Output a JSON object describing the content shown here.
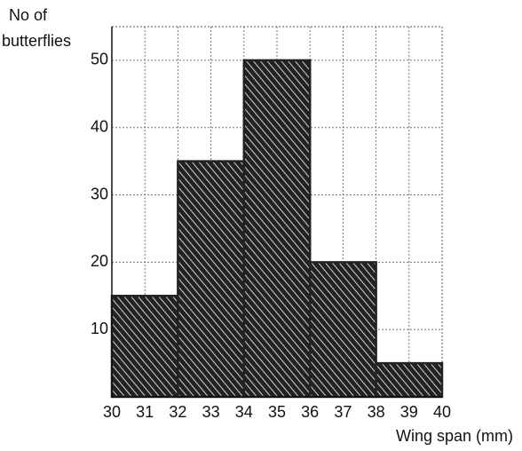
{
  "chart_data": {
    "type": "histogram",
    "ylabel": [
      "No of",
      "butterflies"
    ],
    "xlabel": "Wing span (mm)",
    "bins": [
      30,
      32,
      34,
      36,
      38,
      40
    ],
    "values": [
      15,
      35,
      50,
      20,
      5
    ],
    "color": "#222222",
    "xlim": [
      30,
      40
    ],
    "xticks": [
      30,
      31,
      32,
      33,
      34,
      35,
      36,
      37,
      38,
      39,
      40
    ],
    "ylim": [
      0,
      55
    ],
    "yticks": [
      10,
      20,
      30,
      40,
      50
    ],
    "grid": true
  }
}
